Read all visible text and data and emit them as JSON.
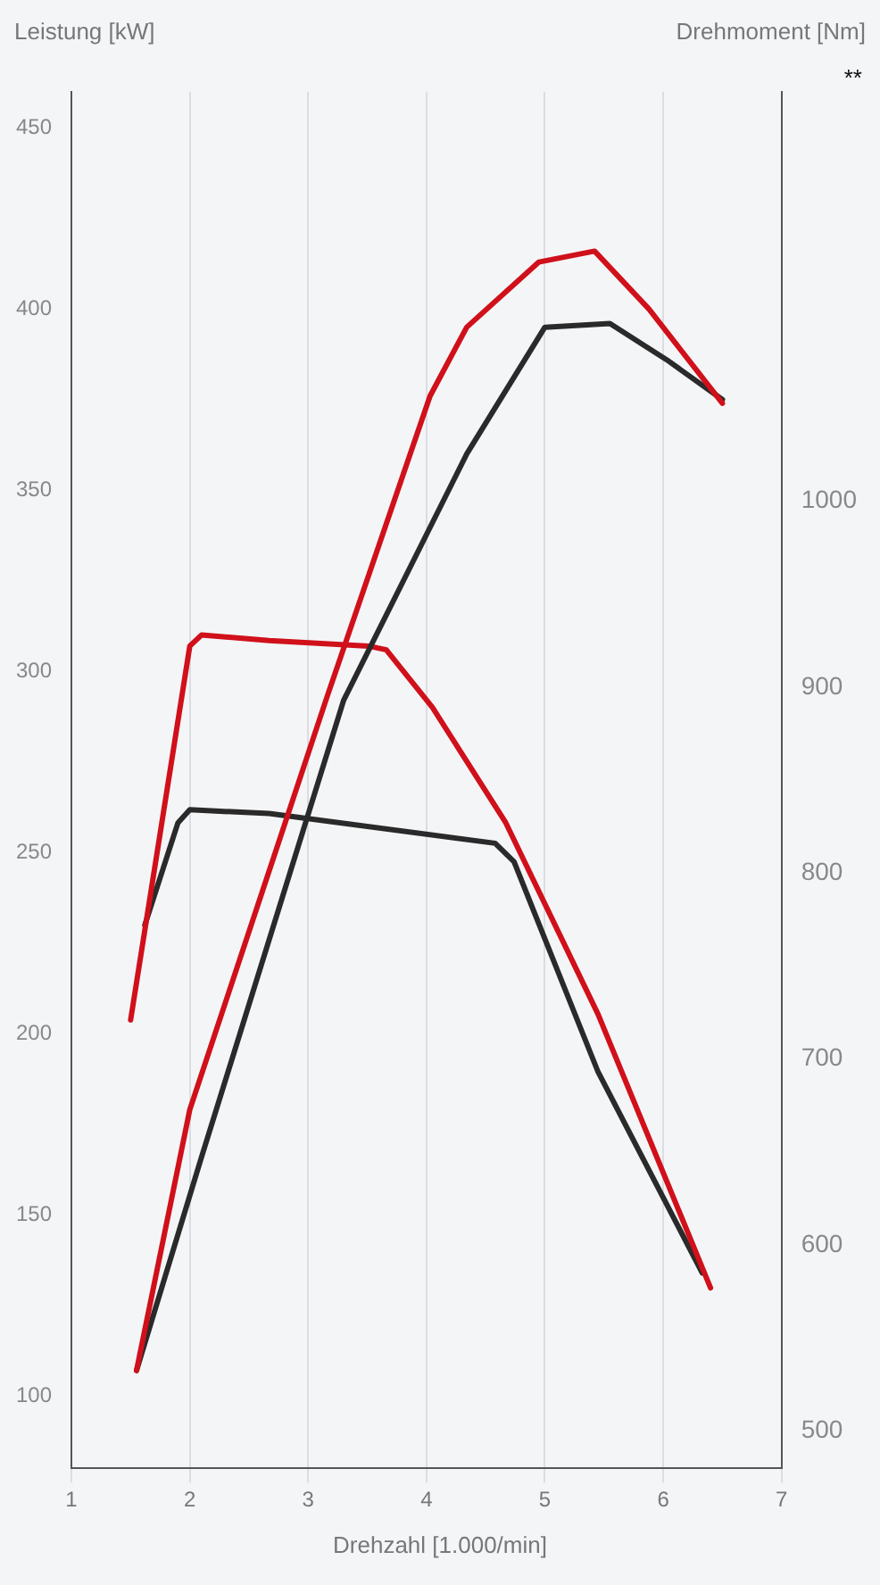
{
  "chart_data": {
    "type": "line",
    "xlabel": "Drehzahl [1.000/min]",
    "ylabel": "Leistung [kW]",
    "y2label": "Drehmoment [Nm]",
    "annotations": [
      "**"
    ],
    "xlim": [
      1,
      7
    ],
    "xticks": [
      1,
      2,
      3,
      4,
      5,
      6,
      7
    ],
    "ylim": [
      80,
      460
    ],
    "yticks": [
      100,
      150,
      200,
      250,
      300,
      350,
      400,
      450
    ],
    "y2lim": [
      480,
      1220
    ],
    "y2ticks": [
      500,
      600,
      700,
      800,
      900,
      1000
    ],
    "grid": "x",
    "marker": "none",
    "line_style": "solid",
    "series": [
      {
        "color": "#d0101a",
        "axis": "y",
        "x": [
          1.55,
          2.0,
          3.16,
          4.03,
          4.34,
          4.95,
          5.42,
          5.88,
          6.5
        ],
        "values": [
          107,
          179,
          293,
          376,
          395,
          413,
          416,
          400,
          374
        ]
      },
      {
        "color": "#2a2a2a",
        "axis": "y",
        "x": [
          1.55,
          2.1,
          3.3,
          4.34,
          5.0,
          5.55,
          6.03,
          6.5
        ],
        "values": [
          107,
          166,
          292,
          360,
          395,
          396,
          386,
          375
        ]
      },
      {
        "color": "#d0101a",
        "axis": "y2",
        "x": [
          1.5,
          2.0,
          2.1,
          2.67,
          3.51,
          3.66,
          4.05,
          4.67,
          5.45,
          6.4
        ],
        "values": [
          721,
          922,
          928,
          925,
          922,
          920,
          889,
          827,
          724,
          577
        ]
      },
      {
        "color": "#2a2a2a",
        "axis": "y2",
        "x": [
          1.62,
          1.9,
          2.0,
          2.67,
          4.58,
          4.74,
          5.45,
          6.33
        ],
        "values": [
          772,
          827,
          834,
          832,
          816,
          806,
          693,
          585
        ]
      }
    ]
  }
}
